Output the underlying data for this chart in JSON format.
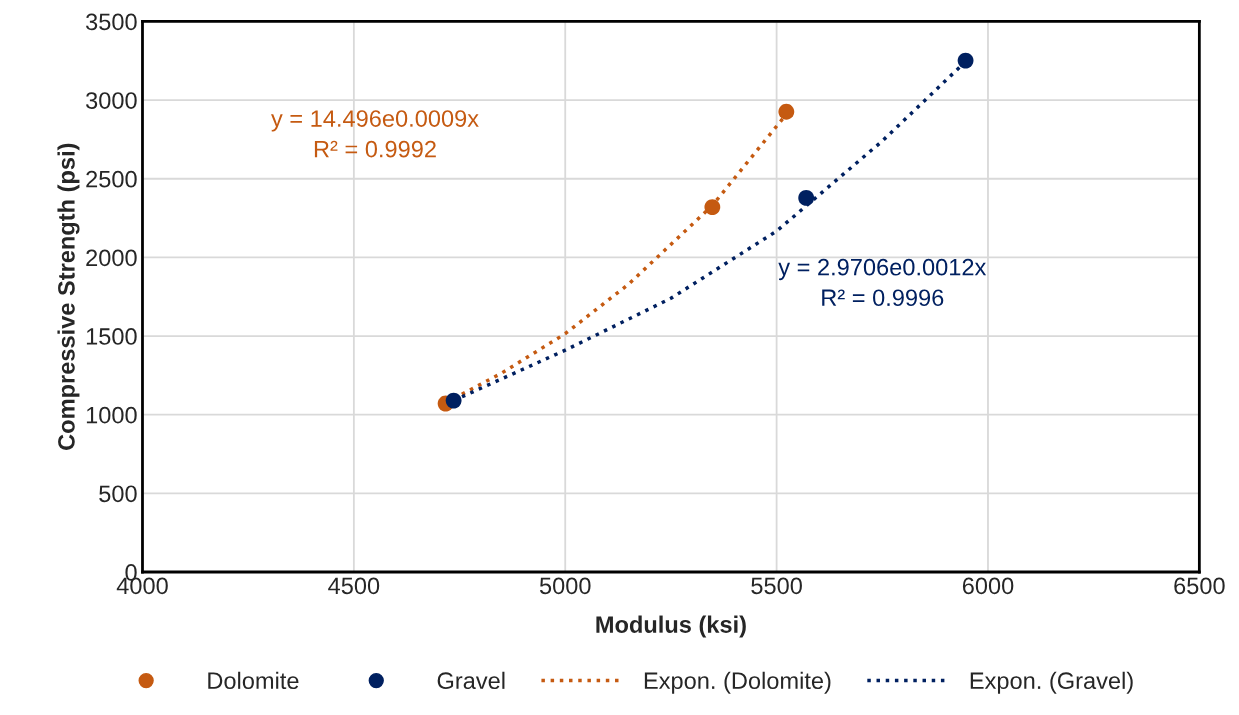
{
  "chart_data": {
    "type": "scatter",
    "xlabel": "Modulus (ksi)",
    "ylabel": "Compressive Strength (psi)",
    "xlim": [
      4000,
      6500
    ],
    "xticks": [
      4000,
      4500,
      5000,
      5500,
      6000,
      6500
    ],
    "ylim": [
      0,
      3500
    ],
    "yticks": [
      0,
      500,
      1000,
      1500,
      2000,
      2500,
      3000,
      3500
    ],
    "grid": true,
    "legend": "bottom",
    "series": [
      {
        "name": "Dolomite",
        "marker": "circle",
        "color": "#c55a11",
        "x": [
          4717,
          5348,
          5523
        ],
        "values": [
          1071,
          2320,
          2926
        ]
      },
      {
        "name": "Gravel",
        "marker": "circle",
        "color": "#002060",
        "x": [
          4736,
          5570,
          5947
        ],
        "values": [
          1090,
          2378,
          3251
        ]
      },
      {
        "name": "Expon. (Dolomite)",
        "type": "line",
        "marker": "none",
        "line_style": "dotted",
        "color": "#c55a11",
        "x": [
          4717,
          4850,
          5000,
          5150,
          5348,
          5523
        ],
        "values": [
          1075,
          1265,
          1515,
          1830,
          2330,
          2910
        ]
      },
      {
        "name": "Expon. (Gravel)",
        "type": "line",
        "marker": "none",
        "line_style": "dotted",
        "color": "#002060",
        "x": [
          4736,
          5000,
          5250,
          5500,
          5750,
          5947
        ],
        "values": [
          1090,
          1410,
          1740,
          2167,
          2740,
          3245
        ]
      }
    ],
    "annotations": [
      "y = 14.496e0.0009x\nR² = 0.9992",
      "y = 2.9706e0.0012x\nR² = 0.9996"
    ]
  }
}
